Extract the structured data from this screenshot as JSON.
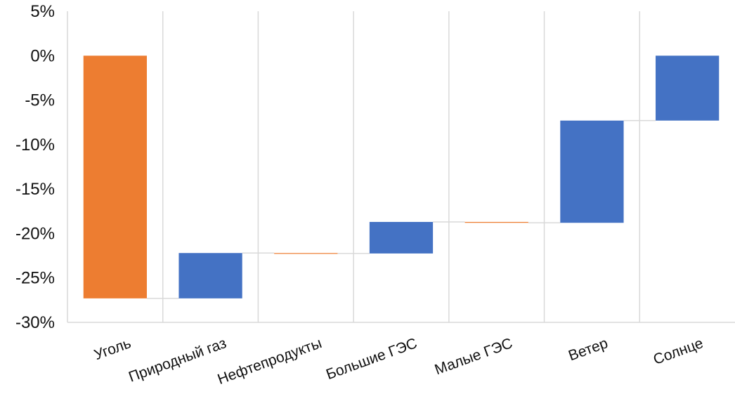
{
  "chart_data": {
    "type": "bar",
    "subtype": "waterfall",
    "title": "",
    "xlabel": "",
    "ylabel": "",
    "ylim": [
      -30,
      5
    ],
    "y_ticks": [
      5,
      0,
      -5,
      -10,
      -15,
      -20,
      -25,
      -30
    ],
    "y_tick_labels": [
      "5%",
      "0%",
      "-5%",
      "-10%",
      "-15%",
      "-20%",
      "-25%",
      "-30%"
    ],
    "grid": "vertical",
    "legend": "none",
    "categories": [
      "Уголь",
      "Природный газ",
      "Нефтепродукты",
      "Большие ГЭС",
      "Малые ГЭС",
      "Ветер",
      "Солнце"
    ],
    "bars": [
      {
        "category": "Уголь",
        "start": 0,
        "end": -27.3,
        "color": "#ED7D31"
      },
      {
        "category": "Природный газ",
        "start": -27.3,
        "end": -22.2,
        "color": "#4472C4"
      },
      {
        "category": "Нефтепродукты",
        "start": -22.2,
        "end": -22.25,
        "color": "#ED7D31"
      },
      {
        "category": "Большие ГЭС",
        "start": -22.25,
        "end": -18.7,
        "color": "#4472C4"
      },
      {
        "category": "Малые ГЭС",
        "start": -18.7,
        "end": -18.8,
        "color": "#ED7D31"
      },
      {
        "category": "Ветер",
        "start": -18.8,
        "end": -7.3,
        "color": "#4472C4"
      },
      {
        "category": "Солнце",
        "start": -7.3,
        "end": 0,
        "color": "#4472C4"
      }
    ],
    "colors": {
      "negative": "#ED7D31",
      "positive": "#4472C4",
      "gridline": "#D9D9D9",
      "connector": "#D9D9D9"
    }
  }
}
